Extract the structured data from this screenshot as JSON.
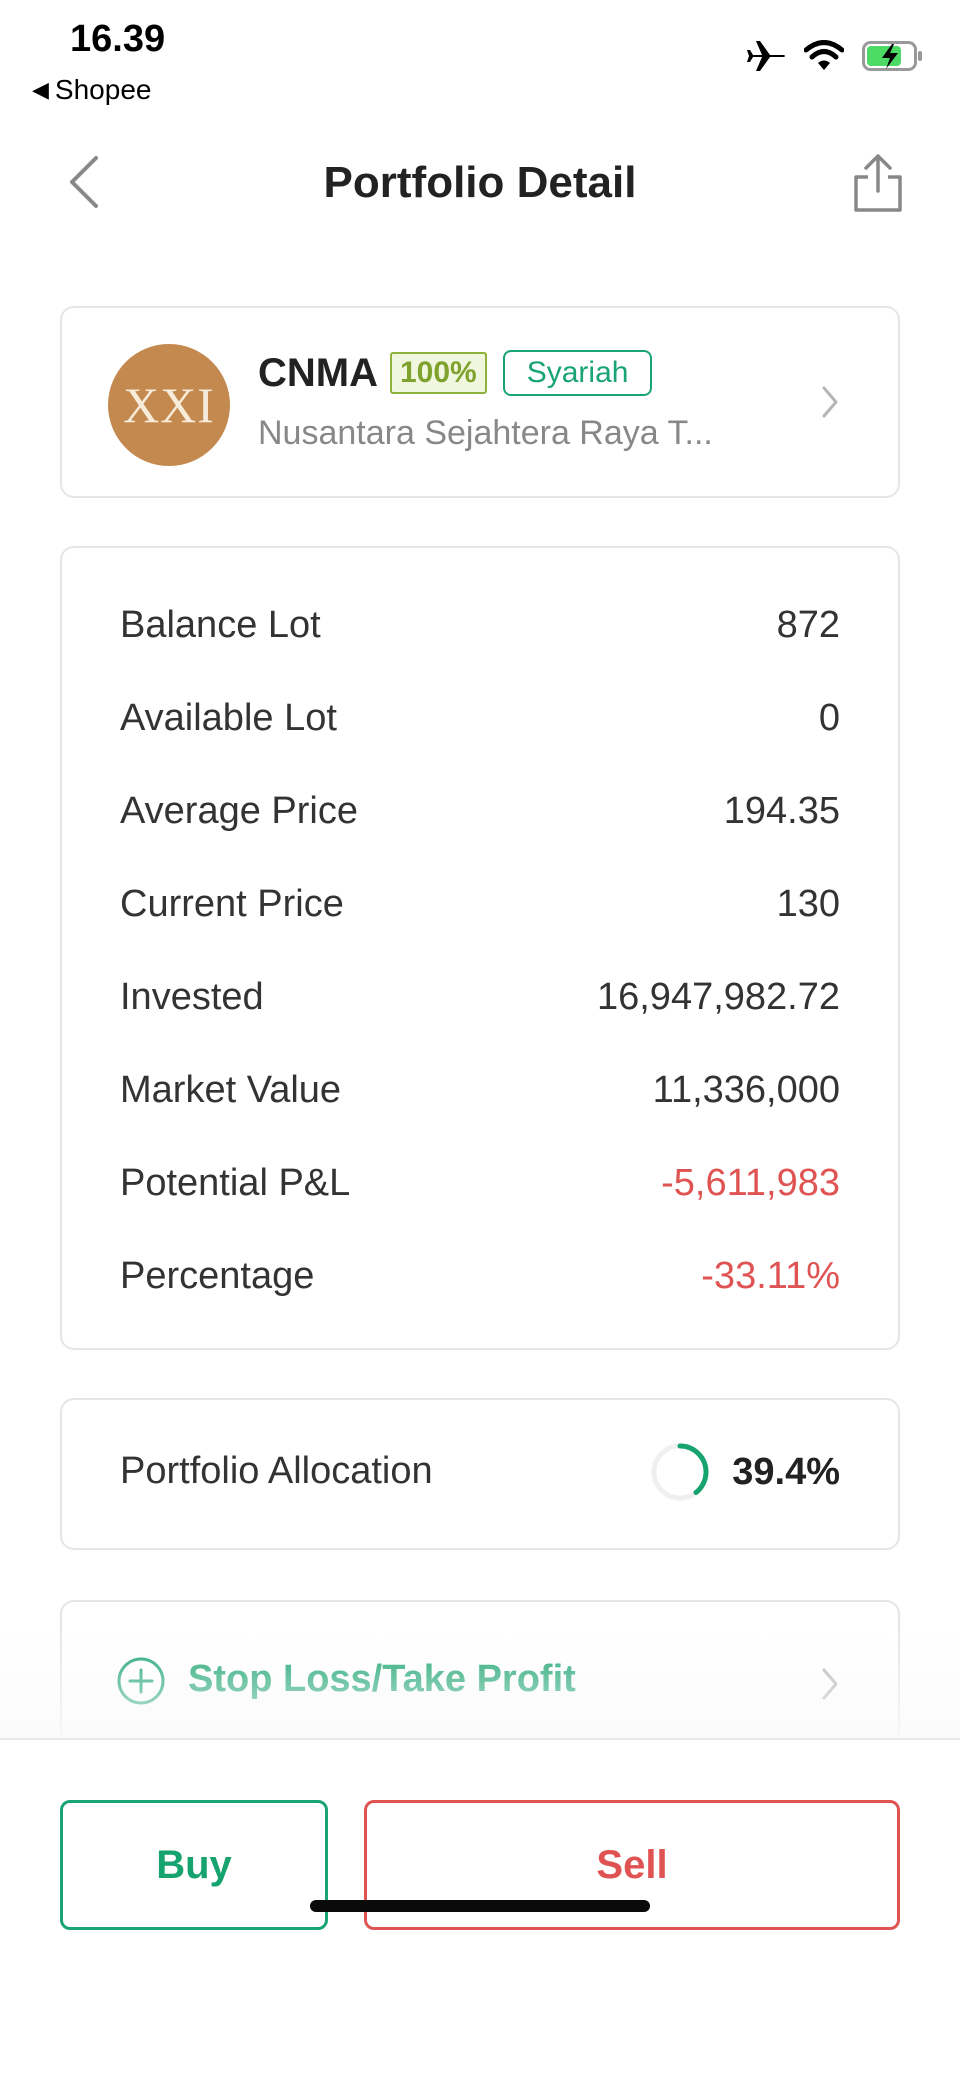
{
  "status_bar": {
    "time": "16.39",
    "back_app": "Shopee",
    "icons": [
      "airplane-icon",
      "wifi-icon",
      "battery-charging-icon"
    ]
  },
  "header": {
    "title": "Portfolio Detail",
    "back_icon": "chevron-left-icon",
    "share_icon": "share-icon"
  },
  "stock": {
    "logo_text": "XXI",
    "ticker": "CNMA",
    "badge_pct": "100%",
    "badge_syariah": "Syariah",
    "company": "Nusantara Sejahtera Raya T..."
  },
  "details": [
    {
      "label": "Balance Lot",
      "value": "872"
    },
    {
      "label": "Available Lot",
      "value": "0"
    },
    {
      "label": "Average Price",
      "value": "194.35"
    },
    {
      "label": "Current Price",
      "value": "130"
    },
    {
      "label": "Invested",
      "value": "16,947,982.72"
    },
    {
      "label": "Market Value",
      "value": "11,336,000"
    },
    {
      "label": "Potential P&L",
      "value": "-5,611,983"
    },
    {
      "label": "Percentage",
      "value": "-33.11%"
    }
  ],
  "allocation": {
    "label": "Portfolio Allocation",
    "value": "39.4%",
    "fraction": 0.394
  },
  "stop_loss": {
    "label": "Stop Loss/Take Profit"
  },
  "actions": {
    "buy": "Buy",
    "sell": "Sell"
  },
  "colors": {
    "green": "#17a36f",
    "red": "#e05353",
    "badge_green": "#8db33a",
    "logo_bg": "#c4894f"
  }
}
